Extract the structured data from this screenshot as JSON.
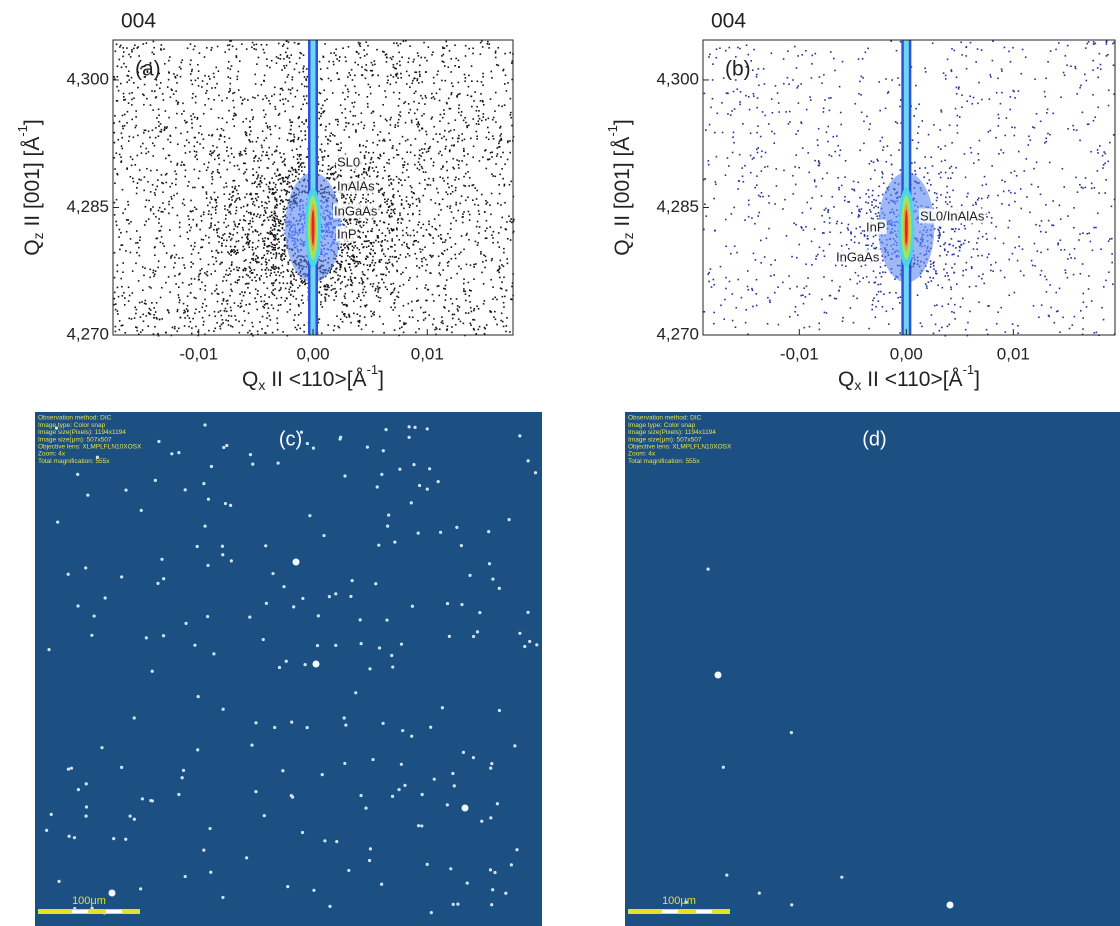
{
  "chart_data": [
    {
      "type": "rsm",
      "title": "004",
      "panel": "(a)",
      "xlabel": [
        "Q",
        "x",
        " II <110>[Å",
        "-1",
        "]"
      ],
      "ylabel": [
        "Q",
        "z",
        " II [001] [Å",
        "-1",
        "]"
      ],
      "xlim": [
        -0.0175,
        0.0175
      ],
      "ylim": [
        4.27,
        4.3047
      ],
      "xticks": [
        {
          "value": -0.01,
          "label": "-0,01"
        },
        {
          "value": 0,
          "label": "0,00"
        },
        {
          "value": 0.01,
          "label": "0,01"
        }
      ],
      "yticks": [
        {
          "value": 4.27,
          "label": "4,270"
        },
        {
          "value": 4.285,
          "label": "4,285"
        },
        {
          "value": 4.3,
          "label": "4,300"
        }
      ],
      "annotations": [
        "SL0",
        "InAlAs",
        "InGaAs",
        "InP"
      ]
    },
    {
      "type": "rsm",
      "title": "004",
      "panel": "(b)",
      "xlabel": [
        "Q",
        "x",
        " II <110>[Å",
        "-1",
        "]"
      ],
      "ylabel": [
        "Q",
        "z",
        " II [001] [Å",
        "-1",
        "]"
      ],
      "xlim": [
        -0.019,
        0.0195
      ],
      "ylim": [
        4.27,
        4.3047
      ],
      "xticks": [
        {
          "value": -0.01,
          "label": "-0,01"
        },
        {
          "value": 0,
          "label": "0,00"
        },
        {
          "value": 0.01,
          "label": "0,01"
        }
      ],
      "yticks": [
        {
          "value": 4.27,
          "label": "4,270"
        },
        {
          "value": 4.285,
          "label": "4,285"
        },
        {
          "value": 4.3,
          "label": "4,300"
        }
      ],
      "annotations": [
        "SL0/InAlAs",
        "InP",
        "InGaAs"
      ]
    }
  ],
  "micrographs": [
    {
      "panel": "(c)",
      "info": [
        "Observation method: DIC",
        "Image type: Color snap",
        "Image size(Pixels): 1194x1194",
        "Image size(μm): 507x507",
        "Objective lens: XLMPLFLN10XOSX",
        "Zoom: 4x",
        "Total magnification: 555x"
      ],
      "scale_bar": "100μm"
    },
    {
      "panel": "(d)",
      "info": [
        "Observation method: DIC",
        "Image type: Color snap",
        "Image size(Pixels): 1194x1194",
        "Image size(μm): 507x507",
        "Objective lens: XLMPLFLN10XOSX",
        "Zoom: 4x",
        "Total magnification: 555x"
      ],
      "scale_bar": "100μm"
    }
  ]
}
